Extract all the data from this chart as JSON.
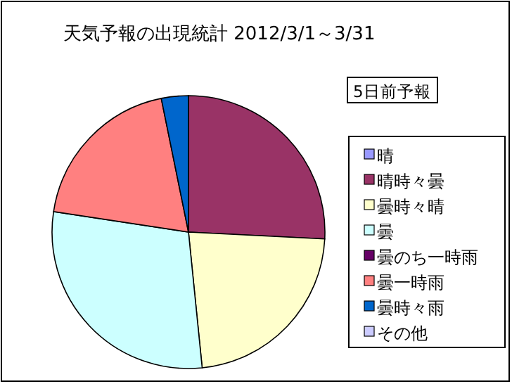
{
  "chart_data": {
    "type": "pie",
    "title": "天気予報の出現統計 2012/3/1～3/31",
    "legend_title": "5日前予報",
    "legend": "right",
    "categories": [
      "晴",
      "晴時々曇",
      "曇時々晴",
      "曇",
      "曇のち一時雨",
      "曇一時雨",
      "曇時々雨",
      "その他"
    ],
    "values": [
      0,
      25.8,
      22.6,
      29.0,
      0,
      19.4,
      3.2,
      0
    ],
    "colors": [
      "#9999ff",
      "#993366",
      "#ffffcc",
      "#ccffff",
      "#660066",
      "#ff8080",
      "#0066cc",
      "#ccccff"
    ]
  }
}
